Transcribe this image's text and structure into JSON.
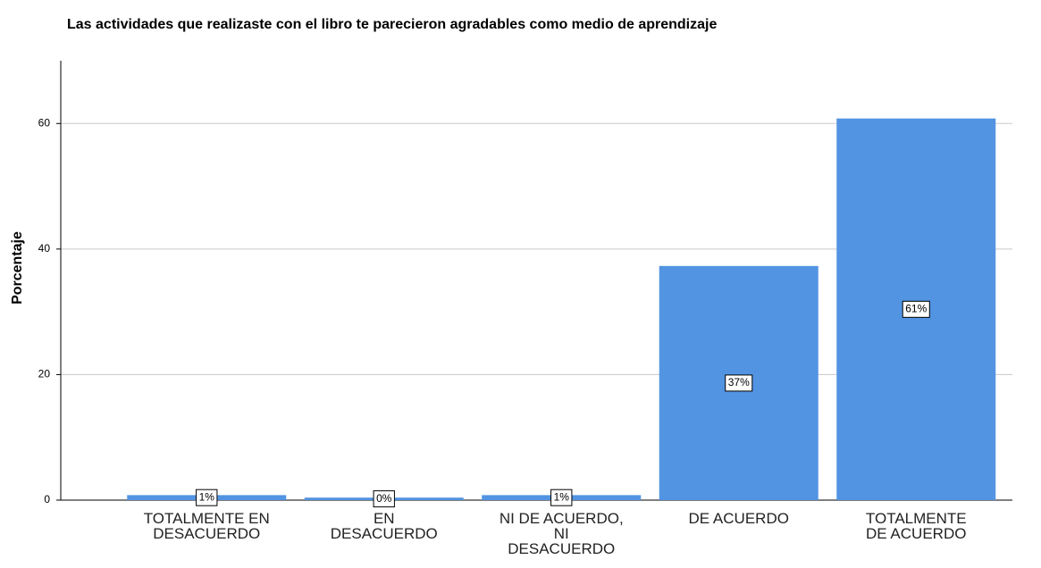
{
  "chart_data": {
    "type": "bar",
    "title": "Las actividades que realizaste con el libro te parecieron agradables como medio de aprendizaje",
    "y_label": "Porcentaje",
    "categories": [
      "TOTALMENTE EN\nDESACUERDO",
      "EN\nDESACUERDO",
      "NI DE ACUERDO,\nNI\nDESACUERDO",
      "DE ACUERDO",
      "TOTALMENTE\nDE ACUERDO"
    ],
    "values": [
      0.8,
      0.4,
      0.8,
      37.3,
      60.8
    ],
    "value_labels": [
      "1%",
      "0%",
      "1%",
      "37%",
      "61%"
    ],
    "color": "#5294e2",
    "ylim": [
      0,
      70
    ],
    "yticks": [
      0,
      20,
      40,
      60
    ],
    "grid": true
  }
}
